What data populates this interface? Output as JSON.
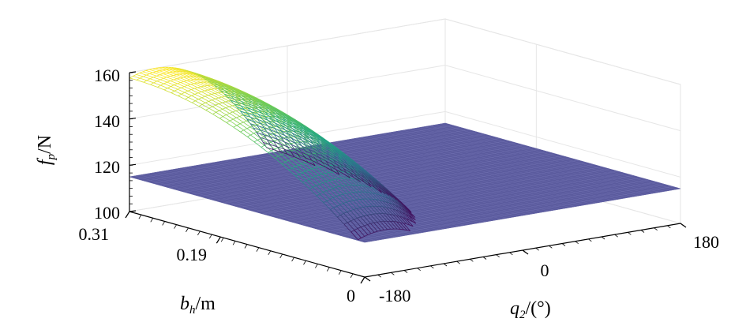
{
  "chart_data": {
    "type": "surface",
    "title": "",
    "xlabel": {
      "symbol": "q",
      "subscript": "2",
      "unit": "/(°)"
    },
    "ylabel": {
      "symbol": "b",
      "subscript": "h",
      "unit": "/m"
    },
    "zlabel": {
      "symbol": "f",
      "subscript": "p",
      "unit": "/N"
    },
    "x_ticks": [
      "-180",
      "0",
      "180"
    ],
    "y_ticks": [
      "0",
      "0.19",
      "0.31"
    ],
    "z_ticks": [
      "100",
      "120",
      "140",
      "160"
    ],
    "xlim": [
      -180,
      180
    ],
    "ylim": [
      0,
      0.31
    ],
    "zlim": [
      100,
      160
    ],
    "grid": true,
    "floor_value": 115,
    "floor_color": "#5b5b9e",
    "peak": {
      "q2": -150,
      "bh": 0.31,
      "fp": 160
    },
    "support_half_width_q2": 130,
    "colormap": [
      "#440154",
      "#30678d",
      "#21a685",
      "#72cf55",
      "#fde725"
    ]
  }
}
